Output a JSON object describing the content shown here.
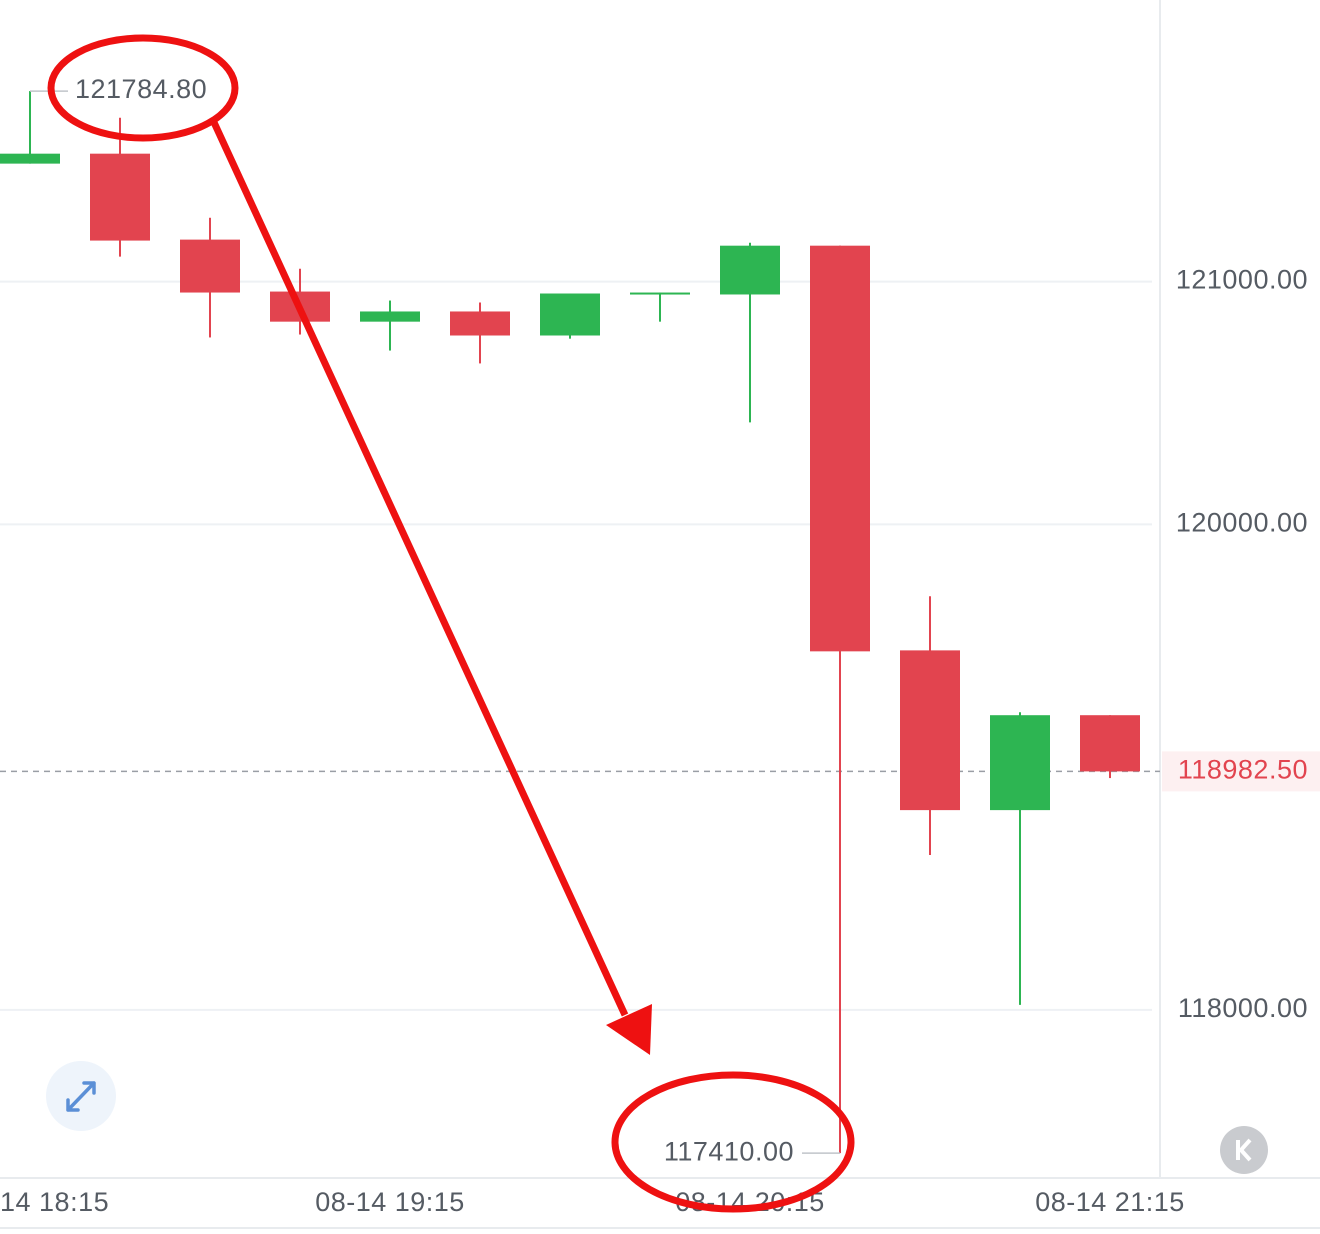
{
  "chart_data": {
    "type": "candlestick",
    "categories": [
      "14 18:15",
      null,
      null,
      null,
      "08-14 19:15",
      null,
      null,
      null,
      "08-14 20:15",
      null,
      null,
      null,
      "08-14 21:15"
    ],
    "open": [
      121486,
      121527,
      121173,
      120959,
      120835,
      120877,
      120778,
      120947,
      120947,
      121148,
      119481,
      118823,
      119214
    ],
    "high": [
      121784.8,
      121675,
      121263,
      121053,
      120922,
      120914,
      120951,
      120955,
      121160,
      121148,
      119704,
      119226,
      119214
    ],
    "low": [
      121486,
      121103,
      120770,
      120782,
      120716,
      120663,
      120765,
      120835,
      120420,
      117410,
      118638,
      118021,
      118955
    ],
    "close": [
      121527,
      121169,
      120955,
      120835,
      120877,
      120778,
      120951,
      120955,
      121148,
      119477,
      118823,
      119214,
      118982.5
    ],
    "up_color": "#2db552",
    "down_color": "#e2444f",
    "ylim": [
      117320,
      122160
    ],
    "yticks": [
      {
        "value": 118000,
        "label": "118000.00"
      },
      {
        "value": 120000,
        "label": "120000.00"
      },
      {
        "value": 121000,
        "label": "121000.00"
      }
    ],
    "grid": true,
    "last_price": {
      "value": 118982.5,
      "label": "118982.50"
    },
    "annotations": [
      {
        "value": 121784.8,
        "label": "121784.80"
      },
      {
        "value": 117410,
        "label": "117410.00"
      }
    ]
  }
}
